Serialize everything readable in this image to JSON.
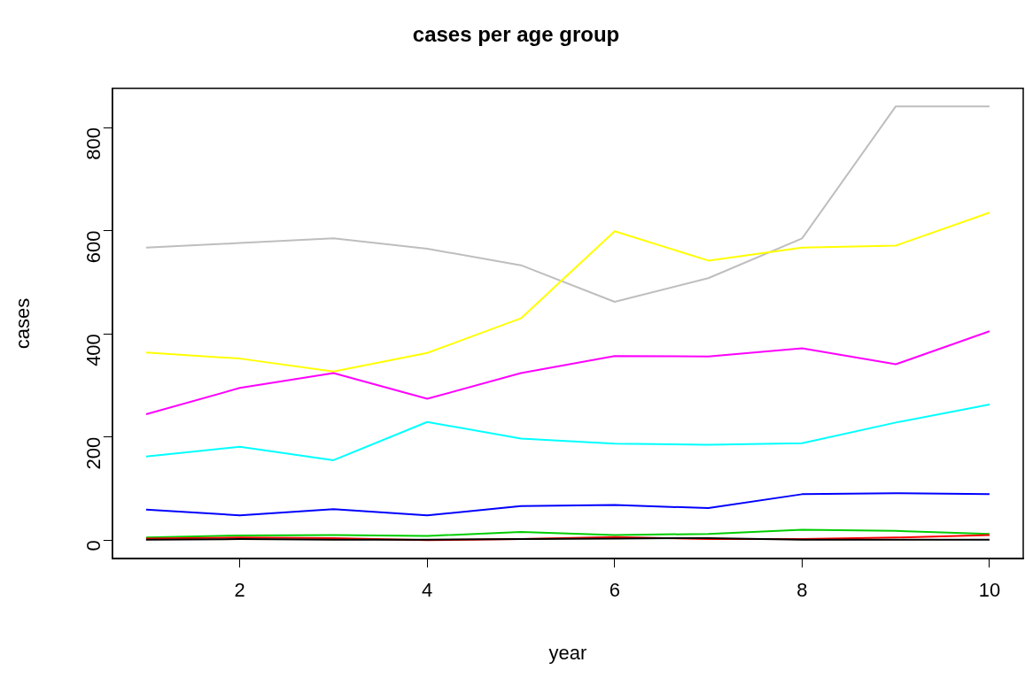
{
  "chart_data": {
    "type": "line",
    "title": "cases per age group",
    "xlabel": "year",
    "ylabel": "cases",
    "x": [
      1,
      2,
      3,
      4,
      5,
      6,
      7,
      8,
      9,
      10
    ],
    "series": [
      {
        "color": "#000000",
        "values": [
          1,
          2,
          1,
          1,
          2,
          3,
          4,
          1,
          1,
          1
        ]
      },
      {
        "color": "#ff0000",
        "values": [
          3,
          5,
          4,
          0,
          2,
          6,
          2,
          2,
          5,
          10
        ]
      },
      {
        "color": "#00cd00",
        "values": [
          5,
          9,
          10,
          8,
          16,
          10,
          12,
          20,
          18,
          12
        ]
      },
      {
        "color": "#0000ff",
        "values": [
          59,
          48,
          60,
          48,
          66,
          68,
          62,
          89,
          91,
          89
        ]
      },
      {
        "color": "#00ffff",
        "values": [
          162,
          181,
          155,
          229,
          197,
          187,
          185,
          188,
          228,
          263
        ]
      },
      {
        "color": "#ff00ff",
        "values": [
          244,
          295,
          324,
          274,
          324,
          357,
          356,
          372,
          341,
          405
        ]
      },
      {
        "color": "#ffff00",
        "values": [
          364,
          352,
          327,
          363,
          430,
          599,
          542,
          567,
          571,
          635
        ]
      },
      {
        "color": "#bebebe",
        "values": [
          567,
          576,
          585,
          565,
          533,
          462,
          508,
          585,
          841,
          841
        ]
      }
    ],
    "xlim": [
      0.64,
      10.36
    ],
    "ylim": [
      -36,
      876
    ],
    "xticks": [
      2,
      4,
      6,
      8,
      10
    ],
    "yticks": [
      0,
      200,
      400,
      600,
      800
    ],
    "grid": false,
    "legend": false,
    "marker": "none",
    "line_style": "solid"
  }
}
